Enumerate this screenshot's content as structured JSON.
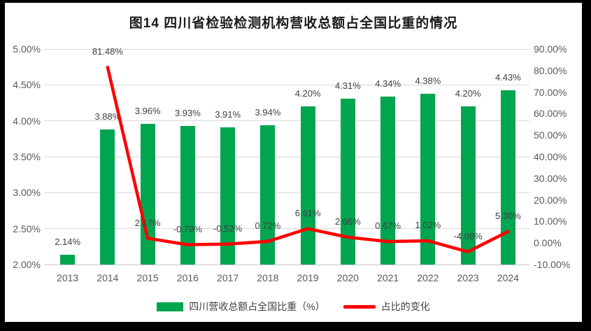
{
  "title": "图14  四川省检验检测机构营收总额占全国比重的情况",
  "colors": {
    "background": "#000000",
    "surface": "#ffffff",
    "bar_green": "#00A550",
    "line_red": "#FF0000",
    "gridline": "#d9d9d9",
    "tick_text": "#595959",
    "label_text": "#404040"
  },
  "chart_data": {
    "type": "bar",
    "subtype": "combo-bar-line",
    "title": "图14  四川省检验检测机构营收总额占全国比重的情况",
    "categories": [
      "2013",
      "2014",
      "2015",
      "2016",
      "2017",
      "2018",
      "2019",
      "2020",
      "2021",
      "2022",
      "2023",
      "2024"
    ],
    "series": [
      {
        "name": "四川营收总额占全国比重（%）",
        "type": "bar",
        "axis": "left",
        "color": "#00A550",
        "values": [
          2.14,
          3.88,
          3.96,
          3.93,
          3.91,
          3.94,
          4.2,
          4.31,
          4.34,
          4.38,
          4.2,
          4.43
        ],
        "labels": [
          "2.14%",
          "3.88%",
          "3.96%",
          "3.93%",
          "3.91%",
          "3.94%",
          "4.20%",
          "4.31%",
          "4.34%",
          "4.38%",
          "4.20%",
          "4.43%"
        ]
      },
      {
        "name": "占比的变化",
        "type": "line",
        "axis": "right",
        "color": "#FF0000",
        "values": [
          null,
          81.48,
          2.17,
          -0.79,
          -0.52,
          0.72,
          6.61,
          2.66,
          0.67,
          1.02,
          -4.08,
          5.3
        ],
        "labels": [
          null,
          "81.48%",
          "2.17%",
          "-0.79%",
          "-0.52%",
          "0.72%",
          "6.61%",
          "2.66%",
          "0.67%",
          "1.02%",
          "-4.08%",
          "5.30%"
        ]
      }
    ],
    "left_axis": {
      "min": 2.0,
      "max": 5.0,
      "step": 0.5,
      "tick_labels": [
        "5.00%",
        "4.50%",
        "4.00%",
        "3.50%",
        "3.00%",
        "2.50%",
        "2.00%"
      ]
    },
    "right_axis": {
      "min": -10,
      "max": 90,
      "step": 10,
      "tick_labels": [
        "90.00%",
        "80.00%",
        "70.00%",
        "60.00%",
        "50.00%",
        "40.00%",
        "30.00%",
        "20.00%",
        "10.00%",
        "0.00%",
        "-10.00%"
      ]
    },
    "grid": true,
    "legend_position": "bottom"
  },
  "legend": {
    "items": [
      {
        "label": "四川营收总额占全国比重（%）",
        "color": "#00A550",
        "marker": "rect"
      },
      {
        "label": "占比的变化",
        "color": "#FF0000",
        "marker": "line"
      }
    ]
  }
}
